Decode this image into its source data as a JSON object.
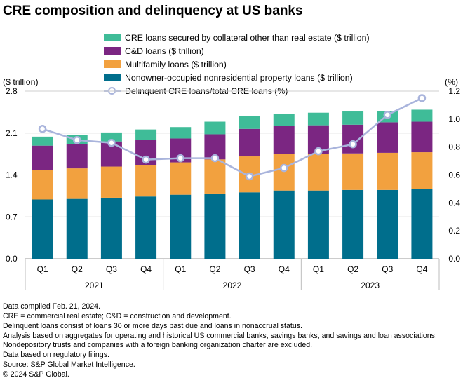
{
  "chart_data": {
    "type": "bar+line",
    "title": "CRE composition and delinquency at US banks",
    "left_axis_label": "($ trillion)",
    "right_axis_label": "(%)",
    "left_ylim": [
      0,
      2.8
    ],
    "left_ticks": [
      "0.0",
      "0.7",
      "1.4",
      "2.1",
      "2.8"
    ],
    "right_ylim": [
      0,
      1.2
    ],
    "right_ticks": [
      "0.0",
      "0.2",
      "0.4",
      "0.6",
      "0.8",
      "1.0",
      "1.2"
    ],
    "categories": [
      "Q1",
      "Q2",
      "Q3",
      "Q4",
      "Q1",
      "Q2",
      "Q3",
      "Q4",
      "Q1",
      "Q2",
      "Q3",
      "Q4"
    ],
    "years": [
      "2021",
      "2022",
      "2023"
    ],
    "series": [
      {
        "name": "Nonowner-occupied nonresidential property loans ($ trillion)",
        "color": "#006e8c",
        "values": [
          0.99,
          1.0,
          1.02,
          1.04,
          1.07,
          1.09,
          1.11,
          1.14,
          1.14,
          1.15,
          1.15,
          1.16
        ]
      },
      {
        "name": "Multifamily loans ($ trillion)",
        "color": "#f2a13f",
        "values": [
          0.49,
          0.51,
          0.52,
          0.52,
          0.54,
          0.57,
          0.6,
          0.61,
          0.61,
          0.61,
          0.62,
          0.62
        ]
      },
      {
        "name": "C&D loans ($ trillion)",
        "color": "#7b2682",
        "values": [
          0.41,
          0.41,
          0.42,
          0.42,
          0.4,
          0.42,
          0.46,
          0.47,
          0.48,
          0.48,
          0.51,
          0.51
        ]
      },
      {
        "name": "CRE loans secured by collateral other than real estate ($ trillion)",
        "color": "#3fbc98",
        "values": [
          0.15,
          0.15,
          0.15,
          0.18,
          0.19,
          0.21,
          0.22,
          0.2,
          0.21,
          0.22,
          0.19,
          0.2
        ]
      }
    ],
    "line_series": {
      "name": "Delinquent CRE loans/total CRE loans (%)",
      "color": "#a9b4dc",
      "values": [
        0.93,
        0.85,
        0.83,
        0.71,
        0.72,
        0.72,
        0.59,
        0.65,
        0.77,
        0.82,
        1.03,
        1.15
      ]
    },
    "legend": [
      "CRE loans secured by collateral other than real estate ($ trillion)",
      "C&D loans ($ trillion)",
      "Multifamily loans ($ trillion)",
      "Nonowner-occupied nonresidential property loans ($ trillion)",
      "Delinquent CRE loans/total CRE loans (%)"
    ]
  },
  "notes": [
    "Data compiled Feb. 21, 2024.",
    "CRE = commercial real estate; C&D = construction and development.",
    "Delinquent loans consist of loans 30 or more days past due and loans in nonaccrual status.",
    "Analysis based on aggregates for operating and historical US commercial banks, savings banks, and savings and loan associations. Nondepository trusts and companies with a foreign banking organization charter are excluded.",
    "Data based on regulatory filings.",
    "Source: S&P Global Market Intelligence.",
    "© 2024 S&P Global."
  ],
  "colors": {
    "other": "#3fbc98",
    "cd": "#7b2682",
    "multifamily": "#f2a13f",
    "nonowner": "#006e8c",
    "line": "#a9b4dc",
    "grid": "#cfcfcf"
  }
}
